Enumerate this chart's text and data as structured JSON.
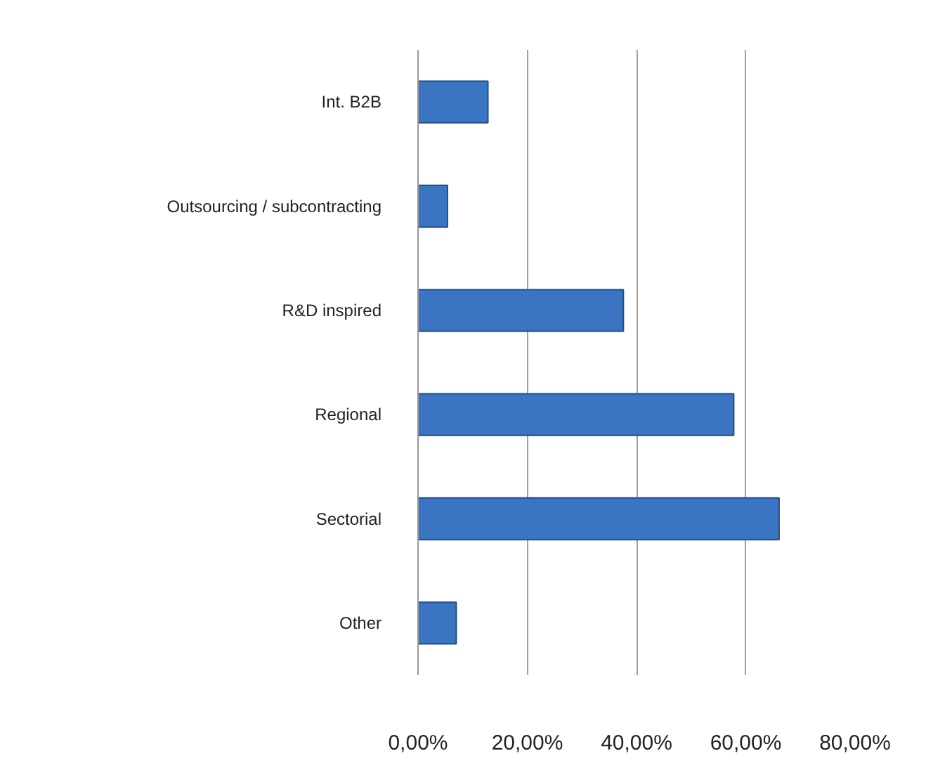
{
  "chart_data": {
    "type": "bar",
    "orientation": "horizontal",
    "categories": [
      "Int. B2B",
      "Outsourcing / subcontracting",
      "R&D inspired",
      "Regional",
      "Sectorial",
      "Other"
    ],
    "values": [
      12.8,
      5.4,
      37.6,
      57.8,
      66.1,
      7.0
    ],
    "color": "#3b74c0",
    "xlim": [
      0,
      80
    ],
    "xticks": [
      {
        "value": 0,
        "label": "0,00%"
      },
      {
        "value": 20,
        "label": "20,00%"
      },
      {
        "value": 40,
        "label": "40,00%"
      },
      {
        "value": 60,
        "label": "60,00%"
      },
      {
        "value": 80,
        "label": "80,00%"
      }
    ],
    "grid": "x"
  }
}
